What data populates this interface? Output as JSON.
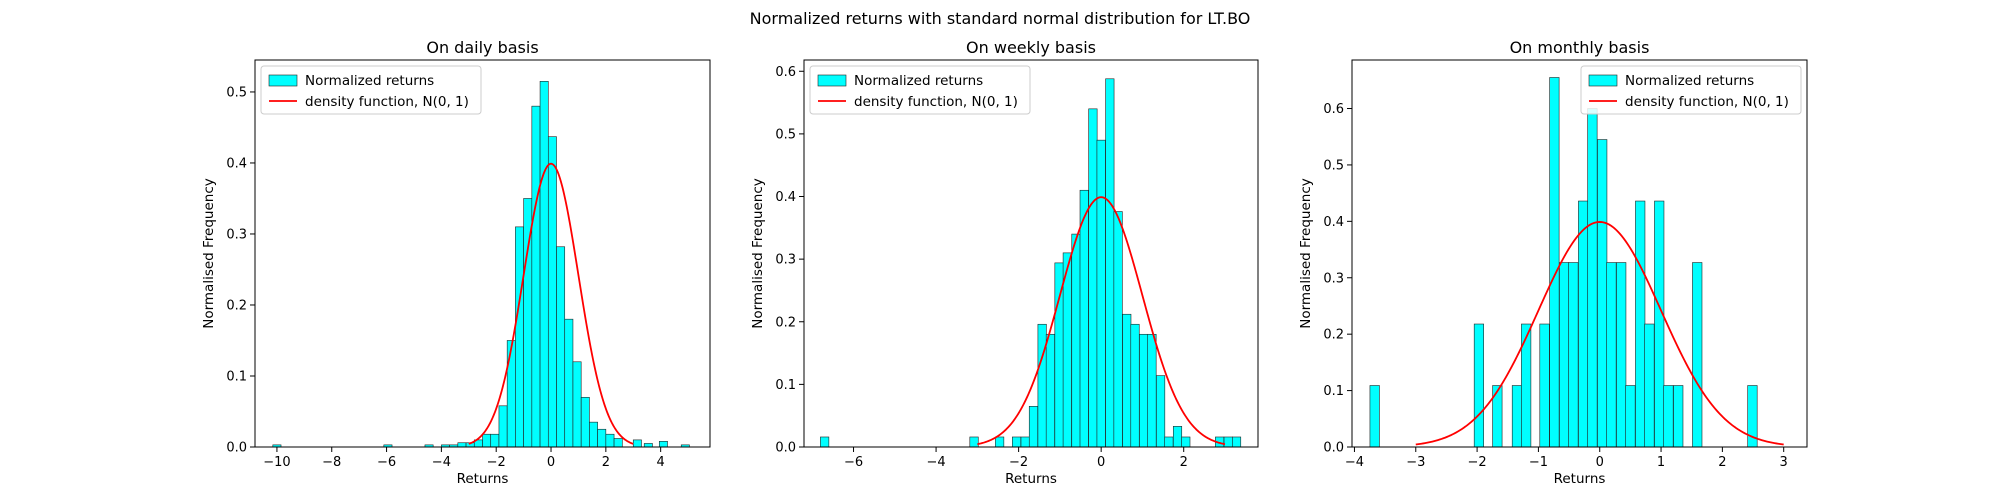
{
  "suptitle": "Normalized returns with standard normal distribution for LT.BO",
  "colors": {
    "bar_fill": "#00ffff",
    "bar_edge": "#222222",
    "curve": "#ff0000",
    "axes": "#000000"
  },
  "chart_data": [
    {
      "type": "bar",
      "title": "On daily basis",
      "xlabel": "Returns",
      "ylabel": "Normalised Frequency",
      "xlim": [
        -10.8,
        5.8
      ],
      "ylim": [
        0,
        0.545
      ],
      "xticks": [
        -10,
        -8,
        -6,
        -4,
        -2,
        0,
        2,
        4
      ],
      "yticks": [
        0.0,
        0.1,
        0.2,
        0.3,
        0.4,
        0.5
      ],
      "ytick_labels": [
        "0.0",
        "0.1",
        "0.2",
        "0.3",
        "0.4",
        "0.5"
      ],
      "legend": {
        "position": "upper-left",
        "entries": [
          "Normalized returns",
          "density function, N(0, 1)"
        ]
      },
      "bin_width": 0.3,
      "bars": [
        {
          "x": -10.0,
          "h": 0.003
        },
        {
          "x": -5.95,
          "h": 0.003
        },
        {
          "x": -4.45,
          "h": 0.003
        },
        {
          "x": -3.85,
          "h": 0.003
        },
        {
          "x": -3.55,
          "h": 0.003
        },
        {
          "x": -3.25,
          "h": 0.006
        },
        {
          "x": -2.95,
          "h": 0.006
        },
        {
          "x": -2.65,
          "h": 0.01
        },
        {
          "x": -2.35,
          "h": 0.018
        },
        {
          "x": -2.05,
          "h": 0.018
        },
        {
          "x": -1.75,
          "h": 0.058
        },
        {
          "x": -1.45,
          "h": 0.15
        },
        {
          "x": -1.15,
          "h": 0.31
        },
        {
          "x": -0.85,
          "h": 0.35
        },
        {
          "x": -0.55,
          "h": 0.48
        },
        {
          "x": -0.25,
          "h": 0.515
        },
        {
          "x": 0.05,
          "h": 0.437
        },
        {
          "x": 0.35,
          "h": 0.282
        },
        {
          "x": 0.65,
          "h": 0.18
        },
        {
          "x": 0.95,
          "h": 0.12
        },
        {
          "x": 1.25,
          "h": 0.07
        },
        {
          "x": 1.55,
          "h": 0.035
        },
        {
          "x": 1.85,
          "h": 0.025
        },
        {
          "x": 2.15,
          "h": 0.018
        },
        {
          "x": 2.45,
          "h": 0.012
        },
        {
          "x": 3.15,
          "h": 0.01
        },
        {
          "x": 3.55,
          "h": 0.005
        },
        {
          "x": 4.1,
          "h": 0.008
        },
        {
          "x": 4.9,
          "h": 0.003
        }
      ],
      "curve": {
        "x_range": [
          -3,
          3
        ],
        "label": "density function, N(0, 1)"
      }
    },
    {
      "type": "bar",
      "title": "On weekly basis",
      "xlabel": "Returns",
      "ylabel": "Normalised Frequency",
      "xlim": [
        -7.2,
        3.8
      ],
      "ylim": [
        0,
        0.618
      ],
      "xticks": [
        -6,
        -4,
        -2,
        0,
        2
      ],
      "yticks": [
        0.0,
        0.1,
        0.2,
        0.3,
        0.4,
        0.5,
        0.6
      ],
      "ytick_labels": [
        "0.0",
        "0.1",
        "0.2",
        "0.3",
        "0.4",
        "0.5",
        "0.6"
      ],
      "legend": {
        "position": "upper-left",
        "entries": [
          "Normalized returns",
          "density function, N(0, 1)"
        ]
      },
      "bin_width": 0.205,
      "bars": [
        {
          "x": -6.7,
          "h": 0.016
        },
        {
          "x": -3.08,
          "h": 0.016
        },
        {
          "x": -2.46,
          "h": 0.016
        },
        {
          "x": -2.05,
          "h": 0.016
        },
        {
          "x": -1.84,
          "h": 0.016
        },
        {
          "x": -1.64,
          "h": 0.065
        },
        {
          "x": -1.43,
          "h": 0.196
        },
        {
          "x": -1.23,
          "h": 0.18
        },
        {
          "x": -1.02,
          "h": 0.294
        },
        {
          "x": -0.82,
          "h": 0.31
        },
        {
          "x": -0.61,
          "h": 0.34
        },
        {
          "x": -0.41,
          "h": 0.41
        },
        {
          "x": -0.2,
          "h": 0.54
        },
        {
          "x": 0.0,
          "h": 0.49
        },
        {
          "x": 0.21,
          "h": 0.588
        },
        {
          "x": 0.41,
          "h": 0.376
        },
        {
          "x": 0.62,
          "h": 0.212
        },
        {
          "x": 0.82,
          "h": 0.196
        },
        {
          "x": 1.03,
          "h": 0.18
        },
        {
          "x": 1.23,
          "h": 0.18
        },
        {
          "x": 1.44,
          "h": 0.114
        },
        {
          "x": 1.64,
          "h": 0.016
        },
        {
          "x": 1.85,
          "h": 0.033
        },
        {
          "x": 2.05,
          "h": 0.016
        },
        {
          "x": 2.87,
          "h": 0.016
        },
        {
          "x": 3.08,
          "h": 0.016
        },
        {
          "x": 3.28,
          "h": 0.016
        }
      ],
      "curve": {
        "x_range": [
          -3,
          3
        ],
        "label": "density function, N(0, 1)"
      }
    },
    {
      "type": "bar",
      "title": "On monthly basis",
      "xlabel": "Returns",
      "ylabel": "Normalised Frequency",
      "xlim": [
        -4.04,
        3.38
      ],
      "ylim": [
        0,
        0.686
      ],
      "xticks": [
        -4,
        -3,
        -2,
        -1,
        0,
        1,
        2,
        3
      ],
      "yticks": [
        0.0,
        0.1,
        0.2,
        0.3,
        0.4,
        0.5,
        0.6
      ],
      "ytick_labels": [
        "0.0",
        "0.1",
        "0.2",
        "0.3",
        "0.4",
        "0.5",
        "0.6"
      ],
      "legend": {
        "position": "upper-right",
        "entries": [
          "Normalized returns",
          "density function, N(0, 1)"
        ]
      },
      "bin_width": 0.155,
      "bars": [
        {
          "x": -3.67,
          "h": 0.109
        },
        {
          "x": -1.97,
          "h": 0.218
        },
        {
          "x": -1.67,
          "h": 0.109
        },
        {
          "x": -1.35,
          "h": 0.109
        },
        {
          "x": -1.2,
          "h": 0.218
        },
        {
          "x": -0.9,
          "h": 0.218
        },
        {
          "x": -0.74,
          "h": 0.655
        },
        {
          "x": -0.58,
          "h": 0.327
        },
        {
          "x": -0.43,
          "h": 0.327
        },
        {
          "x": -0.27,
          "h": 0.436
        },
        {
          "x": -0.12,
          "h": 0.6
        },
        {
          "x": 0.04,
          "h": 0.545
        },
        {
          "x": 0.19,
          "h": 0.327
        },
        {
          "x": 0.35,
          "h": 0.327
        },
        {
          "x": 0.5,
          "h": 0.109
        },
        {
          "x": 0.66,
          "h": 0.436
        },
        {
          "x": 0.81,
          "h": 0.218
        },
        {
          "x": 0.97,
          "h": 0.436
        },
        {
          "x": 1.12,
          "h": 0.109
        },
        {
          "x": 1.28,
          "h": 0.109
        },
        {
          "x": 1.59,
          "h": 0.327
        },
        {
          "x": 2.49,
          "h": 0.109
        }
      ],
      "curve": {
        "x_range": [
          -3,
          3
        ],
        "label": "density function, N(0, 1)"
      }
    }
  ]
}
